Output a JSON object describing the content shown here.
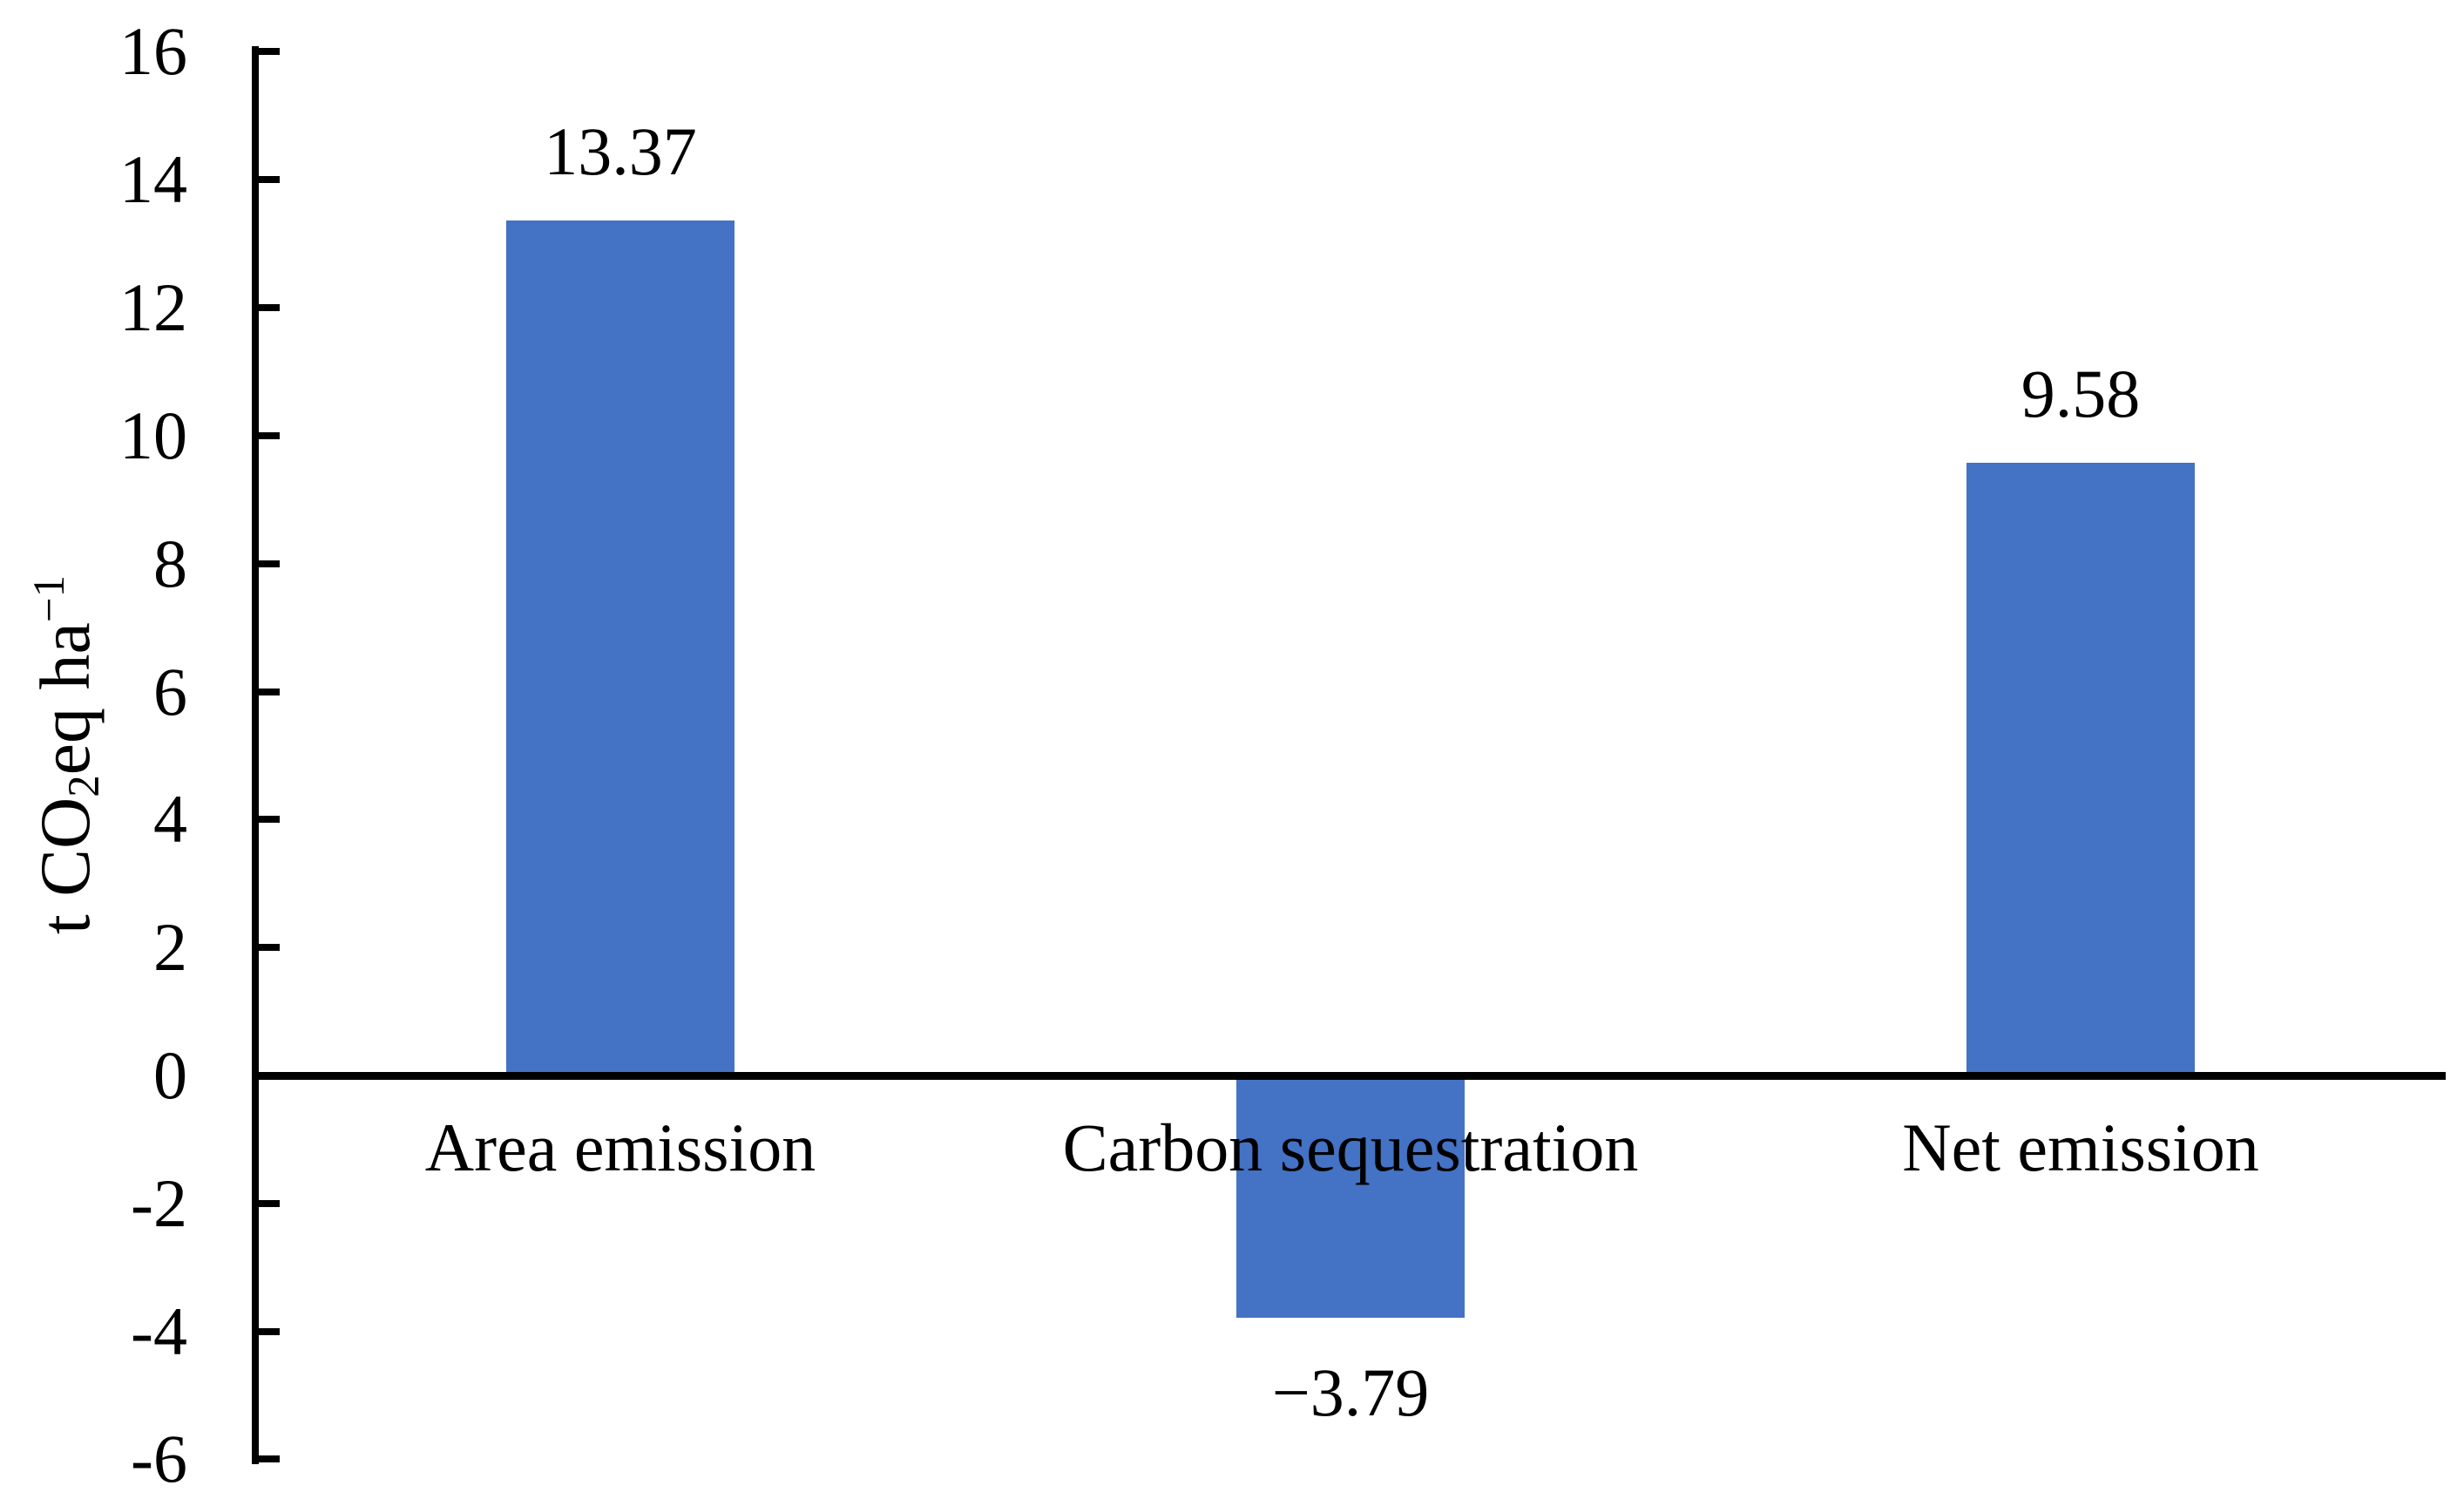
{
  "figure": {
    "background": "#ffffff",
    "text_color": "#000000"
  },
  "chart_data": {
    "type": "bar",
    "title": "",
    "xlabel": "",
    "ylabel": "t CO2eq ha-1",
    "ylabel_parts": [
      [
        "t",
        "t CO"
      ],
      [
        "sub",
        "2"
      ],
      [
        "t",
        "eq ha"
      ],
      [
        "sup",
        "−1"
      ]
    ],
    "categories": [
      "Area emission",
      "Carbon sequestration",
      "Net emission"
    ],
    "values": [
      13.37,
      -3.79,
      9.58
    ],
    "data_labels": [
      "13.37",
      "−3.79",
      "9.58"
    ],
    "ylim": [
      -6,
      16
    ],
    "ytick_step": 2,
    "ytick_labels": [
      "16",
      "14",
      "12",
      "10",
      "8",
      "6",
      "4",
      "2",
      "0",
      "-2",
      "-4",
      "-6"
    ],
    "bar_color": "#4472C4",
    "axis_color": "#000000",
    "grid": false,
    "legend": "none"
  }
}
